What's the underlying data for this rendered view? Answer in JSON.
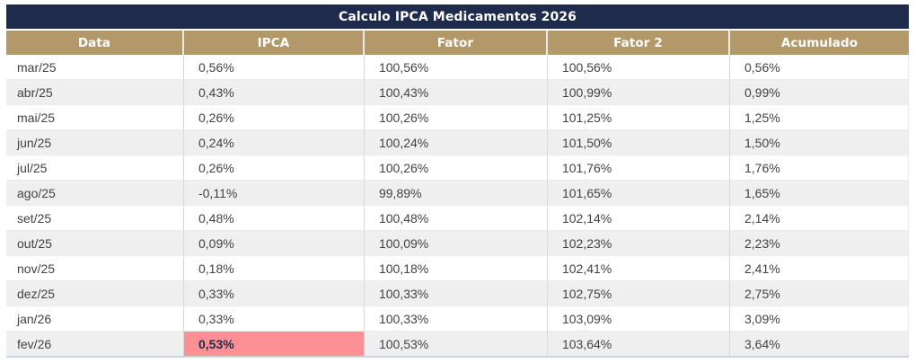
{
  "title": "Calculo IPCA Medicamentos 2026",
  "colors": {
    "title_bar_bg": "#1f2b4c",
    "title_text": "#ffffff",
    "header_bg": "#b3996a",
    "header_text": "#ffffff",
    "row_alt_bg": "#efefef",
    "row_bg": "#ffffff",
    "grid_line": "#d9d9d9",
    "data_text": "#424242",
    "highlight_bg": "#fc9094",
    "highlight_text": "#1f2b4c"
  },
  "table": {
    "headers": [
      "Data",
      "IPCA",
      "Fator",
      "Fator 2",
      "Acumulado"
    ],
    "rows": [
      {
        "data": "mar/25",
        "ipca": "0,56%",
        "fator": "100,56%",
        "fator2": "100,56%",
        "acumulado": "0,56%"
      },
      {
        "data": "abr/25",
        "ipca": "0,43%",
        "fator": "100,43%",
        "fator2": "100,99%",
        "acumulado": "0,99%"
      },
      {
        "data": "mai/25",
        "ipca": "0,26%",
        "fator": "100,26%",
        "fator2": "101,25%",
        "acumulado": "1,25%"
      },
      {
        "data": "jun/25",
        "ipca": "0,24%",
        "fator": "100,24%",
        "fator2": "101,50%",
        "acumulado": "1,50%"
      },
      {
        "data": "jul/25",
        "ipca": "0,26%",
        "fator": "100,26%",
        "fator2": "101,76%",
        "acumulado": "1,76%"
      },
      {
        "data": "ago/25",
        "ipca": "-0,11%",
        "fator": "99,89%",
        "fator2": "101,65%",
        "acumulado": "1,65%"
      },
      {
        "data": "set/25",
        "ipca": "0,48%",
        "fator": "100,48%",
        "fator2": "102,14%",
        "acumulado": "2,14%"
      },
      {
        "data": "out/25",
        "ipca": "0,09%",
        "fator": "100,09%",
        "fator2": "102,23%",
        "acumulado": "2,23%"
      },
      {
        "data": "nov/25",
        "ipca": "0,18%",
        "fator": "100,18%",
        "fator2": "102,41%",
        "acumulado": "2,41%"
      },
      {
        "data": "dez/25",
        "ipca": "0,33%",
        "fator": "100,33%",
        "fator2": "102,75%",
        "acumulado": "2,75%"
      },
      {
        "data": "jan/26",
        "ipca": "0,33%",
        "fator": "100,33%",
        "fator2": "103,09%",
        "acumulado": "3,09%"
      },
      {
        "data": "fev/26",
        "ipca": "0,53%",
        "fator": "100,53%",
        "fator2": "103,64%",
        "acumulado": "3,64%"
      }
    ],
    "highlight": {
      "row": "fev/26",
      "column": "IPCA",
      "value": "0,53%"
    }
  },
  "chart_data": {
    "type": "table",
    "title": "Calculo IPCA Medicamentos 2026",
    "columns": [
      "Data",
      "IPCA",
      "Fator",
      "Fator 2",
      "Acumulado"
    ],
    "units": "%",
    "rows": [
      [
        "mar/25",
        0.56,
        100.56,
        100.56,
        0.56
      ],
      [
        "abr/25",
        0.43,
        100.43,
        100.99,
        0.99
      ],
      [
        "mai/25",
        0.26,
        100.26,
        101.25,
        1.25
      ],
      [
        "jun/25",
        0.24,
        100.24,
        101.5,
        1.5
      ],
      [
        "jul/25",
        0.26,
        100.26,
        101.76,
        1.76
      ],
      [
        "ago/25",
        -0.11,
        99.89,
        101.65,
        1.65
      ],
      [
        "set/25",
        0.48,
        100.48,
        102.14,
        2.14
      ],
      [
        "out/25",
        0.09,
        100.09,
        102.23,
        2.23
      ],
      [
        "nov/25",
        0.18,
        100.18,
        102.41,
        2.41
      ],
      [
        "dez/25",
        0.33,
        100.33,
        102.75,
        2.75
      ],
      [
        "jan/26",
        0.33,
        100.33,
        103.09,
        3.09
      ],
      [
        "fev/26",
        0.53,
        100.53,
        103.64,
        3.64
      ]
    ],
    "highlighted_cell": {
      "row": "fev/26",
      "column": "IPCA"
    }
  }
}
